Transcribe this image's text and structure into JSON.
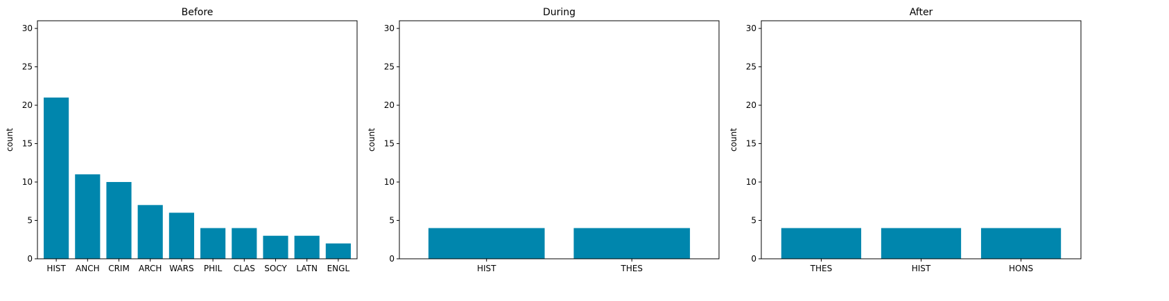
{
  "colors": {
    "bar": "#0086ad",
    "axis": "#000000",
    "background": "#ffffff"
  },
  "chart_data": [
    {
      "type": "bar",
      "title": "Before",
      "xlabel": "",
      "ylabel": "count",
      "ylim": [
        0,
        31
      ],
      "yticks": [
        0,
        5,
        10,
        15,
        20,
        25,
        30
      ],
      "categories": [
        "HIST",
        "ANCH",
        "CRIM",
        "ARCH",
        "WARS",
        "PHIL",
        "CLAS",
        "SOCY",
        "LATN",
        "ENGL"
      ],
      "values": [
        21,
        11,
        10,
        7,
        6,
        4,
        4,
        3,
        3,
        2
      ]
    },
    {
      "type": "bar",
      "title": "During",
      "xlabel": "",
      "ylabel": "count",
      "ylim": [
        0,
        31
      ],
      "yticks": [
        0,
        5,
        10,
        15,
        20,
        25,
        30
      ],
      "categories": [
        "HIST",
        "THES"
      ],
      "values": [
        4,
        4
      ]
    },
    {
      "type": "bar",
      "title": "After",
      "xlabel": "",
      "ylabel": "count",
      "ylim": [
        0,
        31
      ],
      "yticks": [
        0,
        5,
        10,
        15,
        20,
        25,
        30
      ],
      "categories": [
        "THES",
        "HIST",
        "HONS"
      ],
      "values": [
        4,
        4,
        4
      ]
    }
  ]
}
